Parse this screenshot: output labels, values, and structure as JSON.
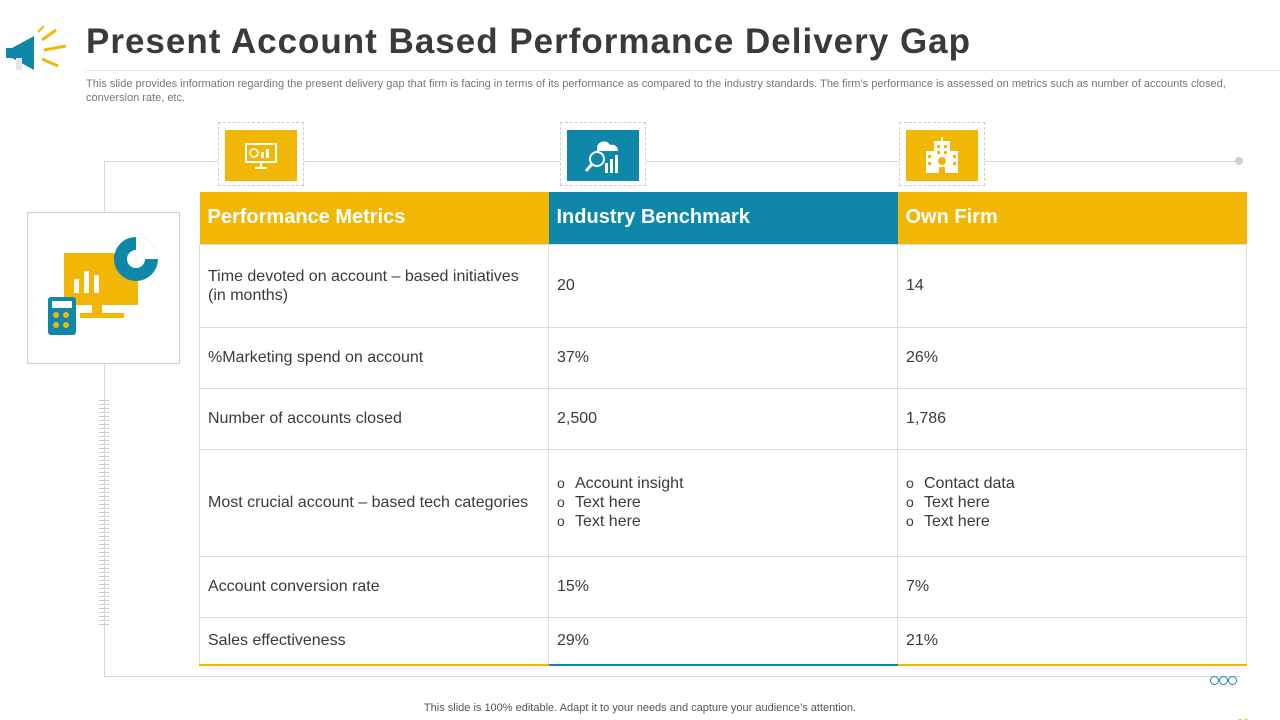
{
  "header": {
    "title": "Present Account Based Performance Delivery Gap",
    "subtitle": "This slide provides information regarding the present delivery gap that firm is facing in terms of its performance as compared to the industry standards. The firm’s performance is assessed on metrics such as number of accounts closed, conversion rate, etc."
  },
  "icons": {
    "megaphone": "megaphone-icon",
    "monitor": "presentation-monitor-icon",
    "analysis": "search-analytics-icon",
    "firm": "office-building-icon",
    "side": "dashboard-calculator-icon"
  },
  "colors": {
    "accent_yellow": "#f2b705",
    "accent_teal": "#0e87a8",
    "text": "#3a3a3a"
  },
  "table": {
    "headers": [
      "Performance Metrics",
      "Industry Benchmark",
      "Own Firm"
    ],
    "rows": [
      {
        "metric": "Time devoted on account – based initiatives (in months)",
        "benchmark": "20",
        "firm": "14"
      },
      {
        "metric": "%Marketing spend on account",
        "benchmark": "37%",
        "firm": "26%"
      },
      {
        "metric": "Number of accounts closed",
        "benchmark": "2,500",
        "firm": "1,786"
      },
      {
        "metric": "Most crucial account – based tech categories",
        "benchmark_list": [
          "Account insight",
          "Text here",
          "Text here"
        ],
        "firm_list": [
          "Contact data",
          "Text here",
          "Text here"
        ]
      },
      {
        "metric": "Account conversion rate",
        "benchmark": "15%",
        "firm": "7%"
      },
      {
        "metric": "Sales effectiveness",
        "benchmark": "29%",
        "firm": "21%"
      }
    ]
  },
  "footer": {
    "note": "This slide is 100% editable. Adapt it to your needs and capture your audience’s attention."
  }
}
